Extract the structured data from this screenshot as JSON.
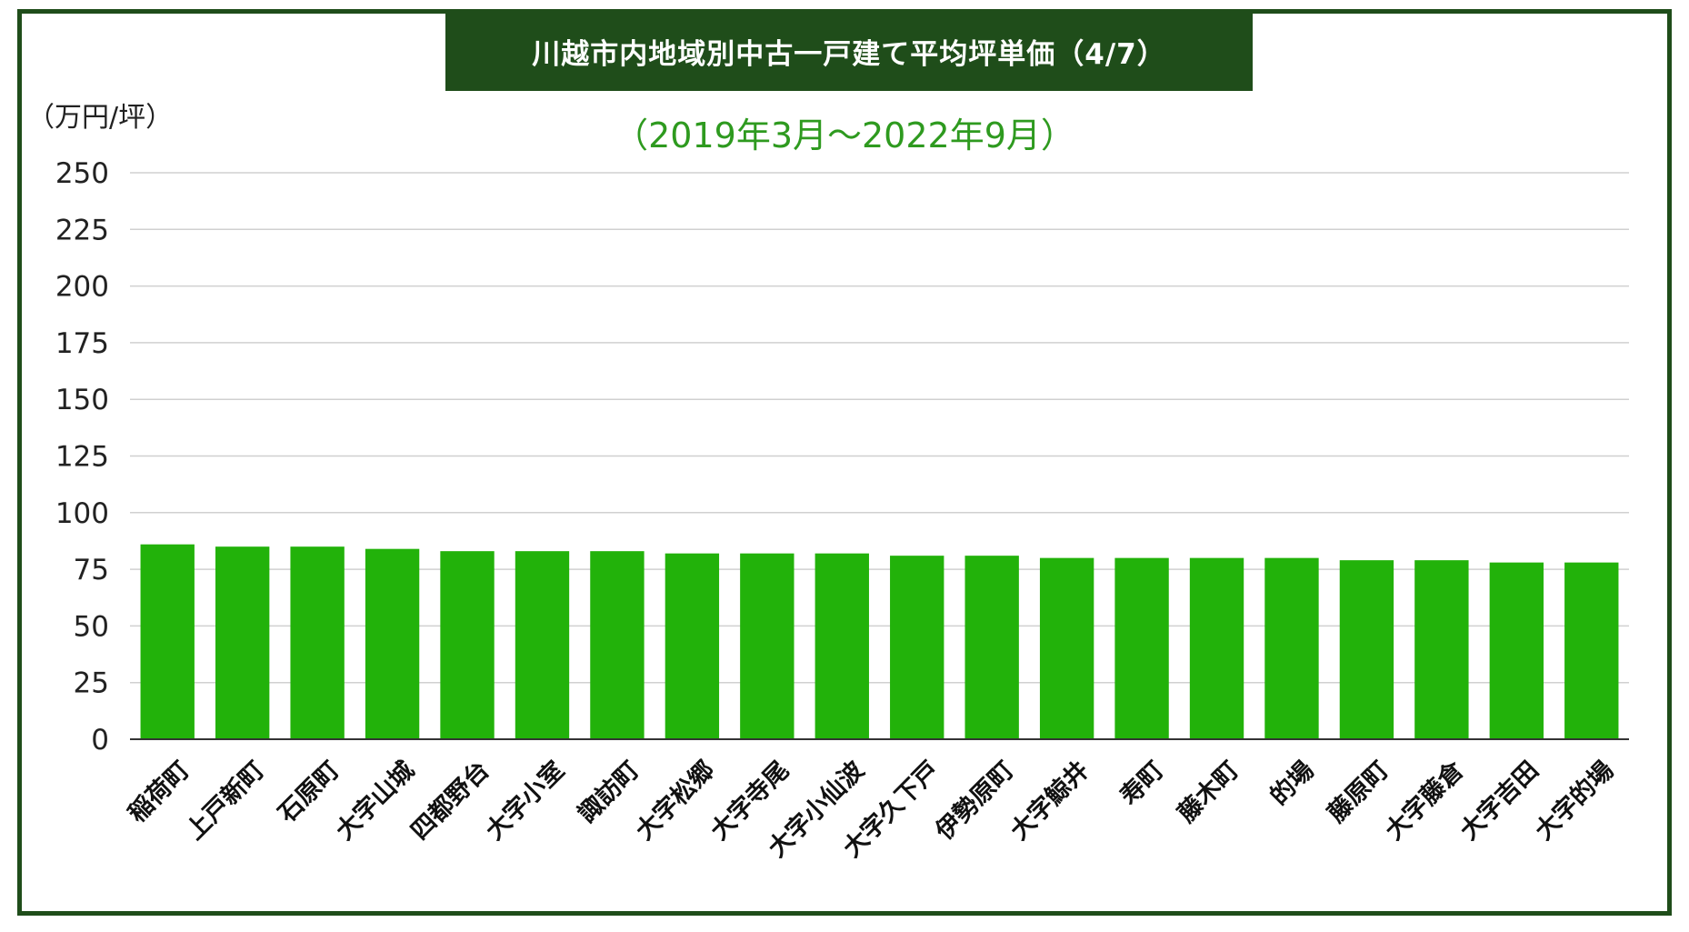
{
  "colors": {
    "frame": "#1f4d1a",
    "title_bg": "#1f4d1a",
    "title_text": "#ffffff",
    "subtitle": "#2e9a1f",
    "bar": "#22b20a",
    "grid": "#d0d0d0",
    "axis": "#333333"
  },
  "chart_data": {
    "type": "bar",
    "title": "川越市内地域別中古一戸建て平均坪単価（4/7）",
    "subtitle": "（2019年3月〜2022年9月）",
    "ylabel": "（万円/坪）",
    "xlabel": "",
    "ylim": [
      0,
      250
    ],
    "yticks": [
      0,
      25,
      50,
      75,
      100,
      125,
      150,
      175,
      200,
      225,
      250
    ],
    "grid": true,
    "legend": "none",
    "categories": [
      "稲荷町",
      "上戸新町",
      "石原町",
      "大字山城",
      "四都野台",
      "大字小室",
      "諏訪町",
      "大字松郷",
      "大字寺尾",
      "大字小仙波",
      "大字久下戸",
      "伊勢原町",
      "大字鯨井",
      "寿町",
      "藤木町",
      "的場",
      "藤原町",
      "大字藤倉",
      "大字吉田",
      "大字的場"
    ],
    "values": [
      86,
      85,
      85,
      84,
      83,
      83,
      83,
      82,
      82,
      82,
      81,
      81,
      80,
      80,
      80,
      80,
      79,
      79,
      78,
      78
    ]
  }
}
